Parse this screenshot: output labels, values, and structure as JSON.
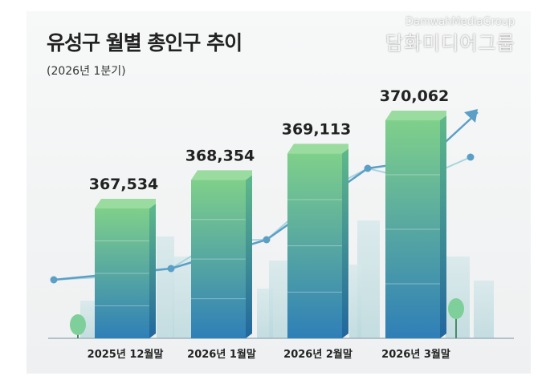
{
  "chart_data": {
    "type": "bar",
    "title": "유성구 월별 총인구 추이",
    "subtitle": "(2026년 1분기)",
    "categories": [
      "2025년 12월말",
      "2026년 1월말",
      "2026년 2월말",
      "2026년 3월말"
    ],
    "values": [
      367534,
      368354,
      369113,
      370062
    ],
    "value_labels": [
      "367,534",
      "368,354",
      "369,113",
      "370,062"
    ],
    "xlabel": "",
    "ylabel": "",
    "grid": false,
    "colors": {
      "bar_top": "#7fd08a",
      "bar_bottom": "#2f7fb8",
      "trend": "#5b9fc6"
    }
  },
  "watermark": {
    "latin": "DamwahMediaGroup",
    "korean": "담화미디어그룹"
  }
}
